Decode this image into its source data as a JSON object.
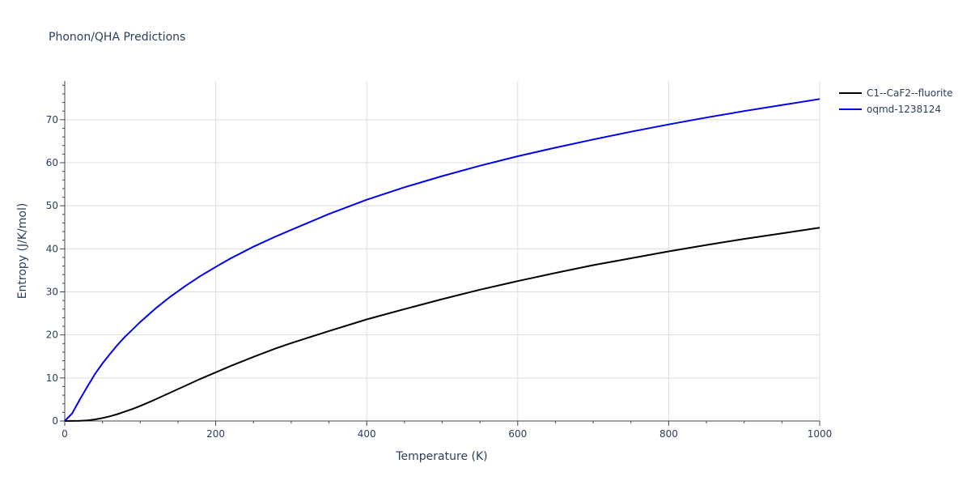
{
  "chart_data": {
    "type": "line",
    "title": "Phonon/QHA Predictions",
    "xlabel": "Temperature (K)",
    "ylabel": "Entropy (J/K/mol)",
    "xlim": [
      0,
      1000
    ],
    "ylim": [
      0,
      79
    ],
    "xticks": [
      0,
      200,
      400,
      600,
      800,
      1000
    ],
    "yticks": [
      0,
      10,
      20,
      30,
      40,
      50,
      60,
      70
    ],
    "grid": true,
    "legend": "top-right",
    "series": [
      {
        "name": "C1--CaF2--fluorite",
        "color": "#000000",
        "x": [
          0,
          10,
          20,
          30,
          40,
          50,
          60,
          70,
          80,
          90,
          100,
          120,
          140,
          160,
          180,
          200,
          220,
          250,
          280,
          300,
          350,
          400,
          450,
          500,
          550,
          600,
          650,
          700,
          750,
          800,
          850,
          900,
          950,
          1000
        ],
        "y": [
          0,
          0.02,
          0.06,
          0.15,
          0.35,
          0.7,
          1.1,
          1.6,
          2.2,
          2.8,
          3.5,
          5.0,
          6.6,
          8.2,
          9.8,
          11.3,
          12.8,
          14.9,
          16.9,
          18.1,
          20.9,
          23.6,
          26.0,
          28.3,
          30.5,
          32.5,
          34.4,
          36.2,
          37.8,
          39.4,
          40.9,
          42.3,
          43.6,
          44.9
        ]
      },
      {
        "name": "oqmd-1238124",
        "color": "#0000ee",
        "x": [
          0,
          10,
          20,
          30,
          40,
          50,
          60,
          70,
          80,
          90,
          100,
          120,
          140,
          160,
          180,
          200,
          220,
          250,
          280,
          300,
          350,
          400,
          450,
          500,
          550,
          600,
          650,
          700,
          750,
          800,
          850,
          900,
          950,
          1000
        ],
        "y": [
          0,
          1.8,
          5.0,
          8.0,
          10.9,
          13.4,
          15.6,
          17.7,
          19.6,
          21.3,
          23.0,
          26.1,
          28.9,
          31.4,
          33.7,
          35.8,
          37.8,
          40.5,
          42.9,
          44.4,
          48.1,
          51.4,
          54.3,
          56.9,
          59.3,
          61.5,
          63.5,
          65.4,
          67.2,
          68.9,
          70.5,
          72.0,
          73.4,
          74.8
        ]
      }
    ]
  }
}
